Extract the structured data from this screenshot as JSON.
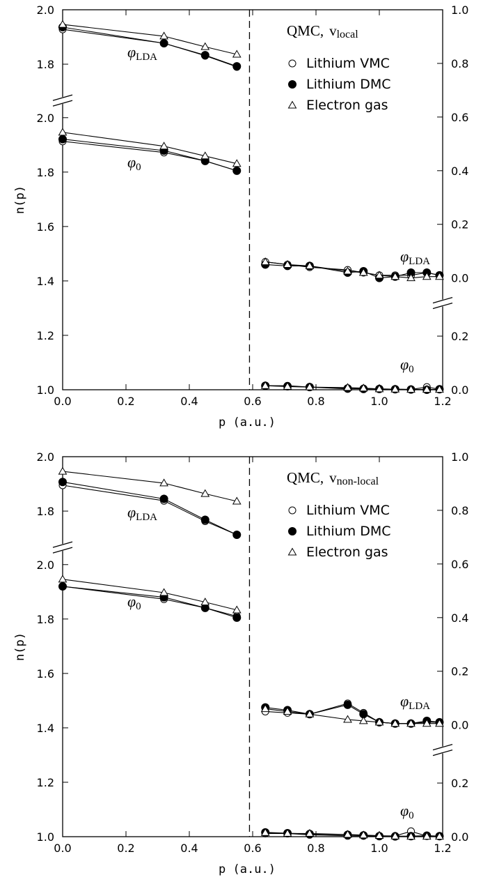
{
  "chart_data": [
    {
      "type": "line",
      "title": "QMC,",
      "title_symbol": "v",
      "title_subscript": "local",
      "xlabel": "p  (a.u.)",
      "ylabel": "n(p)",
      "color": "#000000",
      "legend": [
        "Lithium VMC",
        "Lithium DMC",
        "Electron gas"
      ],
      "markers": [
        "open-circle",
        "filled-circle",
        "open-triangle"
      ],
      "divider_x": 0.59,
      "xlim": [
        0,
        1.2
      ],
      "xticks": [
        {
          "value": 0,
          "label": "0.0"
        },
        0.2,
        0.4,
        0.6,
        0.8,
        {
          "value": 1,
          "label": "1.0"
        },
        1.2
      ],
      "y_segments": [
        {
          "ylim": [
            1.0,
            2.03
          ],
          "yticks": [
            {
              "value": 1,
              "label": "1.0"
            },
            1.2,
            1.4,
            1.6,
            1.8,
            {
              "value": 2,
              "label": "2.0"
            }
          ]
        },
        {
          "ylim": [
            1.7,
            2.0
          ],
          "yticks": [
            1.8,
            {
              "value": 2,
              "label": "2.0"
            }
          ]
        }
      ],
      "y2_segments": [
        {
          "ylim": [
            0.0,
            0.3
          ],
          "yticks": [
            {
              "value": 0,
              "label": "0.0"
            },
            0.2
          ]
        },
        {
          "ylim": [
            -0.07,
            1.0
          ],
          "yticks": [
            {
              "value": 0,
              "label": "0.0"
            },
            0.2,
            0.4,
            0.6,
            0.8,
            {
              "value": 1,
              "label": "1.0"
            }
          ]
        }
      ],
      "groups": [
        {
          "label": "φ",
          "label_subscript": "LDA",
          "axis": "y",
          "segment": 1,
          "x": [
            0,
            0.32,
            0.45,
            0.55
          ],
          "series": [
            {
              "values": [
                1.928,
                1.877,
                1.831,
                1.79
              ]
            },
            {
              "values": [
                1.936,
                1.877,
                1.833,
                1.792
              ]
            },
            {
              "values": [
                1.946,
                1.903,
                1.864,
                1.836
              ]
            }
          ]
        },
        {
          "label": "φ",
          "label_subscript": "0",
          "axis": "y",
          "segment": 0,
          "x": [
            0,
            0.32,
            0.45,
            0.55
          ],
          "series": [
            {
              "values": [
                1.913,
                1.872,
                1.841,
                1.805
              ]
            },
            {
              "values": [
                1.921,
                1.879,
                1.841,
                1.805
              ]
            },
            {
              "values": [
                1.946,
                1.895,
                1.859,
                1.831
              ]
            }
          ]
        },
        {
          "label": "φ",
          "label_subscript": "LDA",
          "axis": "y2",
          "segment": 1,
          "x": [
            0.64,
            0.71,
            0.78,
            0.9,
            0.95,
            1.0,
            1.05,
            1.1,
            1.15,
            1.19
          ],
          "series": [
            {
              "values": [
                0.06,
                0.05,
                0.04,
                0.03,
                0.02,
                0.01,
                0.01,
                0.01,
                0.02,
                0.01
              ]
            },
            {
              "values": [
                0.05,
                0.045,
                0.045,
                0.02,
                0.025,
                0.0,
                0.005,
                0.02,
                0.02,
                0.01
              ]
            },
            {
              "values": [
                0.06,
                0.05,
                0.045,
                0.025,
                0.02,
                0.01,
                0.005,
                0.0,
                0.005,
                0.005
              ]
            }
          ]
        },
        {
          "label": "φ",
          "label_subscript": "0",
          "axis": "y2",
          "segment": 0,
          "x": [
            0.64,
            0.71,
            0.78,
            0.9,
            0.95,
            1.0,
            1.05,
            1.1,
            1.15,
            1.19
          ],
          "series": [
            {
              "values": [
                0.015,
                0.015,
                0.01,
                0.003,
                0.005,
                0.003,
                0.001,
                0.001,
                0.01,
                0.002
              ]
            },
            {
              "values": [
                0.015,
                0.013,
                0.01,
                0.005,
                0.003,
                0.003,
                0.002,
                0.001,
                0.0,
                0.002
              ]
            },
            {
              "values": [
                0.015,
                0.012,
                0.01,
                0.008,
                0.006,
                0.003,
                0.002,
                0.001,
                0.001,
                0.001
              ]
            }
          ]
        }
      ]
    },
    {
      "type": "line",
      "title": "QMC,",
      "title_symbol": "v",
      "title_subscript": "non-local",
      "xlabel": "p  (a.u.)",
      "ylabel": "n(p)",
      "color": "#000000",
      "legend": [
        "Lithium VMC",
        "Lithium DMC",
        "Electron gas"
      ],
      "markers": [
        "open-circle",
        "filled-circle",
        "open-triangle"
      ],
      "divider_x": 0.59,
      "xlim": [
        0,
        1.2
      ],
      "xticks": [
        {
          "value": 0,
          "label": "0.0"
        },
        0.2,
        0.4,
        0.6,
        0.8,
        {
          "value": 1,
          "label": "1.0"
        },
        1.2
      ],
      "y_segments": [
        {
          "ylim": [
            1.0,
            2.03
          ],
          "yticks": [
            {
              "value": 1,
              "label": "1.0"
            },
            1.2,
            1.4,
            1.6,
            1.8,
            {
              "value": 2,
              "label": "2.0"
            }
          ]
        },
        {
          "ylim": [
            1.7,
            2.0
          ],
          "yticks": [
            1.8,
            {
              "value": 2,
              "label": "2.0"
            }
          ]
        }
      ],
      "y2_segments": [
        {
          "ylim": [
            0.0,
            0.3
          ],
          "yticks": [
            {
              "value": 0,
              "label": "0.0"
            },
            0.2
          ]
        },
        {
          "ylim": [
            -0.07,
            1.0
          ],
          "yticks": [
            {
              "value": 0,
              "label": "0.0"
            },
            0.2,
            0.4,
            0.6,
            0.8,
            {
              "value": 1,
              "label": "1.0"
            }
          ]
        }
      ],
      "groups": [
        {
          "label": "φ",
          "label_subscript": "LDA",
          "axis": "y",
          "segment": 1,
          "x": [
            0,
            0.32,
            0.45,
            0.55
          ],
          "series": [
            {
              "values": [
                1.895,
                1.838,
                1.763,
                1.713
              ]
            },
            {
              "values": [
                1.907,
                1.845,
                1.768,
                1.713
              ]
            },
            {
              "values": [
                1.946,
                1.903,
                1.864,
                1.836
              ]
            }
          ]
        },
        {
          "label": "φ",
          "label_subscript": "0",
          "axis": "y",
          "segment": 0,
          "x": [
            0,
            0.32,
            0.45,
            0.55
          ],
          "series": [
            {
              "values": [
                1.92,
                1.873,
                1.841,
                1.81
              ]
            },
            {
              "values": [
                1.92,
                1.88,
                1.841,
                1.805
              ]
            },
            {
              "values": [
                1.946,
                1.897,
                1.862,
                1.833
              ]
            }
          ]
        },
        {
          "label": "φ",
          "label_subscript": "LDA",
          "axis": "y2",
          "segment": 1,
          "x": [
            0.64,
            0.71,
            0.78,
            0.9,
            0.95,
            1.0,
            1.05,
            1.1,
            1.15,
            1.19
          ],
          "series": [
            {
              "values": [
                0.05,
                0.045,
                0.04,
                0.08,
                0.045,
                0.01,
                0.005,
                0.005,
                0.01,
                0.01
              ]
            },
            {
              "values": [
                0.065,
                0.055,
                0.04,
                0.075,
                0.04,
                0.01,
                0.005,
                0.005,
                0.015,
                0.01
              ]
            },
            {
              "values": [
                0.06,
                0.05,
                0.04,
                0.02,
                0.015,
                0.01,
                0.005,
                0.005,
                0.005,
                0.005
              ]
            }
          ]
        },
        {
          "label": "φ",
          "label_subscript": "0",
          "axis": "y2",
          "segment": 0,
          "x": [
            0.64,
            0.71,
            0.78,
            0.9,
            0.95,
            1.0,
            1.05,
            1.1,
            1.15,
            1.19
          ],
          "series": [
            {
              "values": [
                0.012,
                0.012,
                0.007,
                0.003,
                0.003,
                0.002,
                0.003,
                0.02,
                0.002,
                0.001
              ]
            },
            {
              "values": [
                0.016,
                0.013,
                0.01,
                0.007,
                0.005,
                0.002,
                0.001,
                0.002,
                0.004,
                0.002
              ]
            },
            {
              "values": [
                0.015,
                0.012,
                0.012,
                0.008,
                0.006,
                0.004,
                0.002,
                0.001,
                0.001,
                0.001
              ]
            }
          ]
        }
      ]
    }
  ]
}
